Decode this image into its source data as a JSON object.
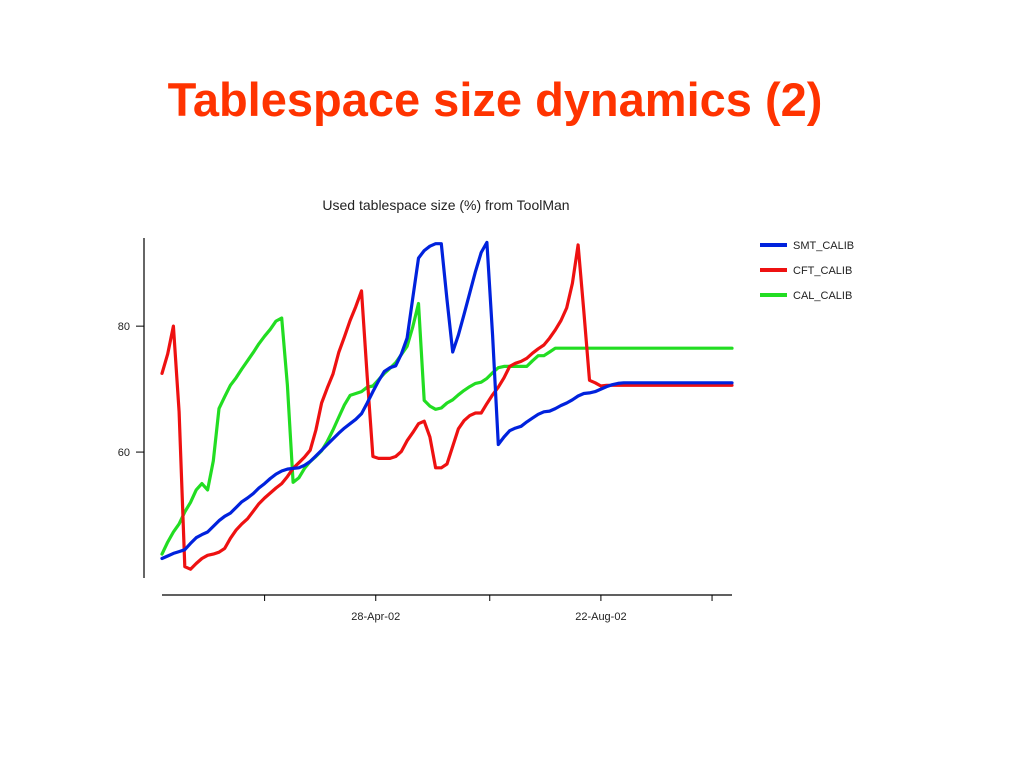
{
  "slide": {
    "title": "Tablespace size dynamics (2)"
  },
  "chart_data": {
    "type": "line",
    "title": "Used tablespace size (%) from ToolMan",
    "xlabel": "",
    "ylabel": "",
    "ylim": [
      40,
      94
    ],
    "yticks": [
      60,
      80
    ],
    "xticks": [
      "28-Apr-02",
      "22-Aug-02"
    ],
    "grid": false,
    "legend_position": "top-right",
    "x": [
      0,
      1,
      2,
      3,
      4,
      5,
      6,
      7,
      8,
      9,
      10,
      11,
      12,
      13,
      14,
      15,
      16,
      17,
      18,
      19,
      20,
      21,
      22,
      23,
      24,
      25,
      26,
      27,
      28,
      29,
      30,
      31,
      32,
      33,
      34,
      35,
      36,
      37,
      38,
      39,
      40,
      41,
      42,
      43,
      44,
      45,
      46,
      47,
      48,
      49,
      50,
      51,
      52,
      53,
      54,
      55,
      56,
      57,
      58,
      59,
      60,
      61,
      62,
      63,
      64,
      65,
      66,
      67,
      68,
      69,
      70,
      71,
      72,
      73,
      74,
      75,
      76,
      77,
      78,
      79,
      80,
      81,
      82,
      83,
      84,
      85,
      86,
      87,
      88,
      89,
      90,
      91,
      92,
      93,
      94,
      95,
      96,
      97,
      98,
      99,
      100
    ],
    "series": [
      {
        "name": "SMT_CALIB",
        "color": "#0022dd",
        "values": [
          43.1,
          43.5,
          43.9,
          44.2,
          44.5,
          45.5,
          46.4,
          46.9,
          47.3,
          48.2,
          49.1,
          49.8,
          50.3,
          51.2,
          52.1,
          52.7,
          53.4,
          54.3,
          55.0,
          55.8,
          56.5,
          57.0,
          57.3,
          57.4,
          57.5,
          57.9,
          58.5,
          59.4,
          60.3,
          61.2,
          62.1,
          63.0,
          63.8,
          64.5,
          65.2,
          66.1,
          67.8,
          69.6,
          71.3,
          72.8,
          73.4,
          73.7,
          75.6,
          78.1,
          84.5,
          90.8,
          92.0,
          92.7,
          93.1,
          93.1,
          84.2,
          75.9,
          78.6,
          81.9,
          85.3,
          88.7,
          91.7,
          93.3,
          78.5,
          61.2,
          62.4,
          63.4,
          63.8,
          64.1,
          64.8,
          65.4,
          66.0,
          66.4,
          66.5,
          66.9,
          67.4,
          67.8,
          68.3,
          68.9,
          69.3,
          69.4,
          69.6,
          70.0,
          70.4,
          70.7,
          70.9,
          71.0,
          71.0,
          71.0,
          71.0,
          71.0,
          71.0,
          71.0,
          71.0,
          71.0,
          71.0,
          71.0,
          71.0,
          71.0,
          71.0,
          71.0,
          71.0,
          71.0,
          71.0,
          71.0,
          71.0
        ]
      },
      {
        "name": "CFT_CALIB",
        "color": "#ee1111",
        "values": [
          72.5,
          75.6,
          80.0,
          66.4,
          41.8,
          41.4,
          42.3,
          43.1,
          43.6,
          43.8,
          44.1,
          44.7,
          46.3,
          47.6,
          48.6,
          49.4,
          50.6,
          51.8,
          52.7,
          53.5,
          54.3,
          55.0,
          56.1,
          57.4,
          58.3,
          59.2,
          60.3,
          63.5,
          67.8,
          70.2,
          72.4,
          75.8,
          78.3,
          80.9,
          83.1,
          85.6,
          72.0,
          59.3,
          59.0,
          59.0,
          59.0,
          59.3,
          60.1,
          61.8,
          63.1,
          64.5,
          64.9,
          62.4,
          57.5,
          57.5,
          58.1,
          60.9,
          63.7,
          65.0,
          65.8,
          66.2,
          66.2,
          67.7,
          69.1,
          70.3,
          71.8,
          73.6,
          74.1,
          74.4,
          74.9,
          75.7,
          76.4,
          77.0,
          78.1,
          79.4,
          80.9,
          82.9,
          86.8,
          92.9,
          82.4,
          71.4,
          71.0,
          70.5,
          70.6,
          70.6,
          70.6,
          70.6,
          70.6,
          70.6,
          70.6,
          70.6,
          70.6,
          70.6,
          70.6,
          70.6,
          70.6,
          70.6,
          70.6,
          70.6,
          70.6,
          70.6,
          70.6,
          70.6,
          70.6,
          70.6,
          70.6
        ]
      },
      {
        "name": "CAL_CALIB",
        "color": "#22dd22",
        "values": [
          43.8,
          45.7,
          47.3,
          48.6,
          50.5,
          52.0,
          54.0,
          55.0,
          54.0,
          58.6,
          66.9,
          68.8,
          70.6,
          71.8,
          73.2,
          74.5,
          75.8,
          77.2,
          78.4,
          79.5,
          80.8,
          81.3,
          70.6,
          55.2,
          55.9,
          57.4,
          58.5,
          59.3,
          60.2,
          61.7,
          63.5,
          65.5,
          67.5,
          69.0,
          69.3,
          69.6,
          70.3,
          70.5,
          71.5,
          72.5,
          73.3,
          74.2,
          75.5,
          76.8,
          79.9,
          83.6,
          68.2,
          67.3,
          66.8,
          67.0,
          67.8,
          68.3,
          69.1,
          69.8,
          70.4,
          70.9,
          71.1,
          71.7,
          72.6,
          73.4,
          73.6,
          73.6,
          73.6,
          73.6,
          73.6,
          74.5,
          75.3,
          75.3,
          75.9,
          76.5,
          76.5,
          76.5,
          76.5,
          76.5,
          76.5,
          76.5,
          76.5,
          76.5,
          76.5,
          76.5,
          76.5,
          76.5,
          76.5,
          76.5,
          76.5,
          76.5,
          76.5,
          76.5,
          76.5,
          76.5,
          76.5,
          76.5,
          76.5,
          76.5,
          76.5,
          76.5,
          76.5,
          76.5,
          76.5,
          76.5,
          76.5
        ]
      }
    ]
  }
}
